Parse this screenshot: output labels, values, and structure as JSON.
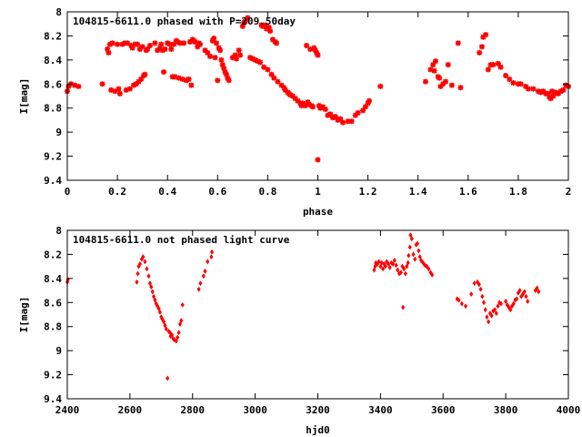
{
  "chart_data": [
    {
      "type": "scatter",
      "title": "104815-6611.0 phased with P=209.50day",
      "xlabel": "phase",
      "ylabel": "I[mag]",
      "xlim": [
        0,
        2
      ],
      "ylim": [
        9.4,
        8
      ],
      "y_inverted": true,
      "grid": false,
      "marker": "star",
      "color": "#ff0000",
      "xticks": [
        0,
        0.2,
        0.4,
        0.6,
        0.8,
        1,
        1.2,
        1.4,
        1.6,
        1.8,
        2
      ],
      "xtick_labels": [
        "0",
        "0.2",
        "0.4",
        "0.6",
        "0.8",
        "1",
        "1.2",
        "1.4",
        "1.6",
        "1.8",
        "2"
      ],
      "yticks": [
        8,
        8.2,
        8.4,
        8.6,
        8.8,
        9,
        9.2,
        9.4
      ],
      "ytick_labels": [
        "8",
        "8.2",
        "8.4",
        "8.6",
        "8.8",
        "9",
        "9.2",
        "9.4"
      ],
      "points": [
        [
          0.0,
          8.66
        ],
        [
          0.005,
          8.62
        ],
        [
          0.015,
          8.6
        ],
        [
          0.03,
          8.61
        ],
        [
          0.045,
          8.62
        ],
        [
          0.14,
          8.6
        ],
        [
          0.16,
          8.31
        ],
        [
          0.165,
          8.34
        ],
        [
          0.17,
          8.27
        ],
        [
          0.175,
          8.65
        ],
        [
          0.18,
          8.26
        ],
        [
          0.19,
          8.66
        ],
        [
          0.2,
          8.27
        ],
        [
          0.205,
          8.64
        ],
        [
          0.21,
          8.68
        ],
        [
          0.22,
          8.27
        ],
        [
          0.23,
          8.26
        ],
        [
          0.235,
          8.65
        ],
        [
          0.24,
          8.26
        ],
        [
          0.25,
          8.64
        ],
        [
          0.255,
          8.28
        ],
        [
          0.26,
          8.3
        ],
        [
          0.265,
          8.61
        ],
        [
          0.27,
          8.27
        ],
        [
          0.275,
          8.6
        ],
        [
          0.28,
          8.27
        ],
        [
          0.285,
          8.58
        ],
        [
          0.29,
          8.31
        ],
        [
          0.295,
          8.56
        ],
        [
          0.3,
          8.29
        ],
        [
          0.305,
          8.53
        ],
        [
          0.31,
          8.52
        ],
        [
          0.315,
          8.32
        ],
        [
          0.32,
          8.31
        ],
        [
          0.33,
          8.28
        ],
        [
          0.35,
          8.26
        ],
        [
          0.36,
          8.32
        ],
        [
          0.37,
          8.3
        ],
        [
          0.375,
          8.27
        ],
        [
          0.38,
          8.32
        ],
        [
          0.385,
          8.5
        ],
        [
          0.39,
          8.31
        ],
        [
          0.4,
          8.26
        ],
        [
          0.41,
          8.27
        ],
        [
          0.415,
          8.31
        ],
        [
          0.42,
          8.54
        ],
        [
          0.425,
          8.27
        ],
        [
          0.43,
          8.54
        ],
        [
          0.435,
          8.24
        ],
        [
          0.44,
          8.25
        ],
        [
          0.445,
          8.55
        ],
        [
          0.45,
          8.26
        ],
        [
          0.46,
          8.56
        ],
        [
          0.465,
          8.26
        ],
        [
          0.475,
          8.57
        ],
        [
          0.485,
          8.56
        ],
        [
          0.49,
          8.25
        ],
        [
          0.495,
          8.61
        ],
        [
          0.5,
          8.23
        ],
        [
          0.505,
          8.24
        ],
        [
          0.51,
          8.25
        ],
        [
          0.52,
          8.29
        ],
        [
          0.525,
          8.26
        ],
        [
          0.53,
          8.27
        ],
        [
          0.55,
          8.32
        ],
        [
          0.56,
          8.34
        ],
        [
          0.57,
          8.37
        ],
        [
          0.58,
          8.24
        ],
        [
          0.585,
          8.22
        ],
        [
          0.59,
          8.38
        ],
        [
          0.595,
          8.26
        ],
        [
          0.6,
          8.57
        ],
        [
          0.605,
          8.3
        ],
        [
          0.61,
          8.32
        ],
        [
          0.615,
          8.4
        ],
        [
          0.62,
          8.44
        ],
        [
          0.625,
          8.47
        ],
        [
          0.63,
          8.5
        ],
        [
          0.635,
          8.52
        ],
        [
          0.64,
          8.55
        ],
        [
          0.645,
          8.57
        ],
        [
          0.66,
          8.38
        ],
        [
          0.67,
          8.36
        ],
        [
          0.675,
          8.39
        ],
        [
          0.685,
          8.32
        ],
        [
          0.69,
          8.36
        ],
        [
          0.7,
          8.12
        ],
        [
          0.705,
          8.09
        ],
        [
          0.71,
          8.08
        ],
        [
          0.72,
          8.05
        ],
        [
          0.73,
          8.38
        ],
        [
          0.74,
          8.39
        ],
        [
          0.75,
          8.4
        ],
        [
          0.76,
          8.41
        ],
        [
          0.77,
          8.42
        ],
        [
          0.775,
          8.11
        ],
        [
          0.78,
          8.12
        ],
        [
          0.785,
          8.46
        ],
        [
          0.79,
          8.11
        ],
        [
          0.795,
          8.14
        ],
        [
          0.8,
          8.48
        ],
        [
          0.805,
          8.13
        ],
        [
          0.81,
          8.16
        ],
        [
          0.815,
          8.52
        ],
        [
          0.82,
          8.23
        ],
        [
          0.825,
          8.55
        ],
        [
          0.83,
          8.25
        ],
        [
          0.835,
          8.26
        ],
        [
          0.84,
          8.58
        ],
        [
          0.855,
          8.61
        ],
        [
          0.865,
          8.63
        ],
        [
          0.87,
          8.65
        ],
        [
          0.88,
          8.67
        ],
        [
          0.885,
          8.68
        ],
        [
          0.89,
          8.69
        ],
        [
          0.9,
          8.7
        ],
        [
          0.91,
          8.72
        ],
        [
          0.92,
          8.74
        ],
        [
          0.93,
          8.76
        ],
        [
          0.935,
          8.78
        ],
        [
          0.94,
          8.76
        ],
        [
          0.95,
          8.78
        ],
        [
          0.955,
          8.28
        ],
        [
          0.96,
          8.75
        ],
        [
          0.965,
          8.77
        ],
        [
          0.97,
          8.31
        ],
        [
          0.975,
          8.78
        ],
        [
          0.98,
          8.79
        ],
        [
          0.985,
          8.3
        ],
        [
          0.99,
          8.32
        ],
        [
          0.995,
          8.34
        ],
        [
          1.0,
          8.36
        ],
        [
          1.0,
          9.23
        ],
        [
          1.005,
          8.78
        ],
        [
          1.01,
          8.8
        ],
        [
          1.02,
          8.79
        ],
        [
          1.03,
          8.81
        ],
        [
          1.04,
          8.86
        ],
        [
          1.05,
          8.85
        ],
        [
          1.06,
          8.88
        ],
        [
          1.07,
          8.87
        ],
        [
          1.08,
          8.9
        ],
        [
          1.09,
          8.89
        ],
        [
          1.1,
          8.92
        ],
        [
          1.12,
          8.91
        ],
        [
          1.135,
          8.91
        ],
        [
          1.15,
          8.86
        ],
        [
          1.16,
          8.84
        ],
        [
          1.18,
          8.82
        ],
        [
          1.19,
          8.79
        ],
        [
          1.2,
          8.76
        ],
        [
          1.205,
          8.74
        ],
        [
          1.25,
          8.62
        ],
        [
          1.43,
          8.58
        ],
        [
          1.45,
          8.48
        ],
        [
          1.46,
          8.44
        ],
        [
          1.465,
          8.49
        ],
        [
          1.47,
          8.41
        ],
        [
          1.48,
          8.54
        ],
        [
          1.485,
          8.55
        ],
        [
          1.49,
          8.62
        ],
        [
          1.5,
          8.6
        ],
        [
          1.51,
          8.58
        ],
        [
          1.52,
          8.44
        ],
        [
          1.535,
          8.61
        ],
        [
          1.56,
          8.26
        ],
        [
          1.57,
          8.63
        ],
        [
          1.645,
          8.34
        ],
        [
          1.655,
          8.29
        ],
        [
          1.66,
          8.21
        ],
        [
          1.67,
          8.19
        ],
        [
          1.68,
          8.48
        ],
        [
          1.69,
          8.44
        ],
        [
          1.7,
          8.44
        ],
        [
          1.72,
          8.43
        ],
        [
          1.73,
          8.46
        ],
        [
          1.75,
          8.53
        ],
        [
          1.765,
          8.56
        ],
        [
          1.78,
          8.59
        ],
        [
          1.8,
          8.6
        ],
        [
          1.81,
          8.6
        ],
        [
          1.83,
          8.62
        ],
        [
          1.84,
          8.64
        ],
        [
          1.86,
          8.64
        ],
        [
          1.88,
          8.66
        ],
        [
          1.89,
          8.67
        ],
        [
          1.9,
          8.66
        ],
        [
          1.91,
          8.68
        ],
        [
          1.92,
          8.68
        ],
        [
          1.925,
          8.71
        ],
        [
          1.93,
          8.72
        ],
        [
          1.935,
          8.66
        ],
        [
          1.94,
          8.7
        ],
        [
          1.95,
          8.67
        ],
        [
          1.96,
          8.68
        ],
        [
          1.97,
          8.66
        ],
        [
          1.98,
          8.65
        ],
        [
          1.99,
          8.61
        ],
        [
          2.0,
          8.62
        ]
      ]
    },
    {
      "type": "scatter",
      "title": "104815-6611.0 not phased light curve",
      "xlabel": "hjd0",
      "ylabel": "I[mag]",
      "xlim": [
        2400,
        4000
      ],
      "ylim": [
        9.4,
        8
      ],
      "y_inverted": true,
      "grid": false,
      "marker": "diamond",
      "color": "#ff0000",
      "xticks": [
        2400,
        2600,
        2800,
        3000,
        3200,
        3400,
        3600,
        3800,
        4000
      ],
      "xtick_labels": [
        "2400",
        "2600",
        "2800",
        "3000",
        "3200",
        "3400",
        "3600",
        "3800",
        "4000"
      ],
      "yticks": [
        8,
        8.2,
        8.4,
        8.6,
        8.8,
        9,
        9.2,
        9.4
      ],
      "ytick_labels": [
        "8",
        "8.2",
        "8.4",
        "8.6",
        "8.8",
        "9",
        "9.2",
        "9.4"
      ],
      "points": [
        [
          2400,
          8.43
        ],
        [
          2402,
          8.41
        ],
        [
          2622,
          8.43
        ],
        [
          2625,
          8.36
        ],
        [
          2628,
          8.3
        ],
        [
          2632,
          8.28
        ],
        [
          2638,
          8.24
        ],
        [
          2642,
          8.22
        ],
        [
          2648,
          8.26
        ],
        [
          2654,
          8.32
        ],
        [
          2660,
          8.38
        ],
        [
          2664,
          8.44
        ],
        [
          2668,
          8.47
        ],
        [
          2672,
          8.51
        ],
        [
          2676,
          8.55
        ],
        [
          2680,
          8.58
        ],
        [
          2684,
          8.61
        ],
        [
          2688,
          8.63
        ],
        [
          2692,
          8.65
        ],
        [
          2696,
          8.68
        ],
        [
          2700,
          8.72
        ],
        [
          2704,
          8.74
        ],
        [
          2708,
          8.76
        ],
        [
          2712,
          8.79
        ],
        [
          2716,
          8.82
        ],
        [
          2720,
          9.23
        ],
        [
          2724,
          8.84
        ],
        [
          2728,
          8.85
        ],
        [
          2730,
          8.88
        ],
        [
          2734,
          8.87
        ],
        [
          2738,
          8.9
        ],
        [
          2742,
          8.91
        ],
        [
          2748,
          8.92
        ],
        [
          2752,
          8.89
        ],
        [
          2756,
          8.85
        ],
        [
          2760,
          8.78
        ],
        [
          2764,
          8.75
        ],
        [
          2768,
          8.62
        ],
        [
          2820,
          8.49
        ],
        [
          2825,
          8.44
        ],
        [
          2835,
          8.38
        ],
        [
          2840,
          8.34
        ],
        [
          2848,
          8.26
        ],
        [
          2860,
          8.22
        ],
        [
          2862,
          8.18
        ],
        [
          3380,
          8.33
        ],
        [
          3383,
          8.3
        ],
        [
          3385,
          8.27
        ],
        [
          3390,
          8.28
        ],
        [
          3395,
          8.26
        ],
        [
          3400,
          8.3
        ],
        [
          3404,
          8.27
        ],
        [
          3408,
          8.32
        ],
        [
          3412,
          8.28
        ],
        [
          3416,
          8.3
        ],
        [
          3420,
          8.26
        ],
        [
          3425,
          8.28
        ],
        [
          3430,
          8.31
        ],
        [
          3435,
          8.27
        ],
        [
          3440,
          8.28
        ],
        [
          3445,
          8.25
        ],
        [
          3450,
          8.29
        ],
        [
          3455,
          8.33
        ],
        [
          3460,
          8.36
        ],
        [
          3465,
          8.35
        ],
        [
          3470,
          8.3
        ],
        [
          3472,
          8.64
        ],
        [
          3475,
          8.32
        ],
        [
          3480,
          8.36
        ],
        [
          3484,
          8.3
        ],
        [
          3488,
          8.27
        ],
        [
          3490,
          8.21
        ],
        [
          3494,
          8.14
        ],
        [
          3496,
          8.04
        ],
        [
          3500,
          8.07
        ],
        [
          3505,
          8.2
        ],
        [
          3510,
          8.24
        ],
        [
          3514,
          8.12
        ],
        [
          3518,
          8.11
        ],
        [
          3522,
          8.17
        ],
        [
          3526,
          8.22
        ],
        [
          3530,
          8.25
        ],
        [
          3536,
          8.27
        ],
        [
          3542,
          8.29
        ],
        [
          3548,
          8.3
        ],
        [
          3554,
          8.32
        ],
        [
          3560,
          8.35
        ],
        [
          3565,
          8.37
        ],
        [
          3645,
          8.57
        ],
        [
          3650,
          8.58
        ],
        [
          3660,
          8.61
        ],
        [
          3672,
          8.63
        ],
        [
          3690,
          8.53
        ],
        [
          3700,
          8.44
        ],
        [
          3710,
          8.43
        ],
        [
          3715,
          8.45
        ],
        [
          3720,
          8.49
        ],
        [
          3725,
          8.55
        ],
        [
          3730,
          8.6
        ],
        [
          3735,
          8.66
        ],
        [
          3740,
          8.72
        ],
        [
          3745,
          8.76
        ],
        [
          3750,
          8.69
        ],
        [
          3755,
          8.71
        ],
        [
          3760,
          8.67
        ],
        [
          3765,
          8.66
        ],
        [
          3770,
          8.69
        ],
        [
          3775,
          8.63
        ],
        [
          3780,
          8.6
        ],
        [
          3785,
          8.61
        ],
        [
          3800,
          8.59
        ],
        [
          3805,
          8.62
        ],
        [
          3810,
          8.64
        ],
        [
          3815,
          8.66
        ],
        [
          3820,
          8.63
        ],
        [
          3825,
          8.61
        ],
        [
          3830,
          8.58
        ],
        [
          3835,
          8.57
        ],
        [
          3840,
          8.52
        ],
        [
          3845,
          8.5
        ],
        [
          3850,
          8.55
        ],
        [
          3855,
          8.53
        ],
        [
          3860,
          8.51
        ],
        [
          3865,
          8.55
        ],
        [
          3870,
          8.59
        ],
        [
          3895,
          8.5
        ],
        [
          3900,
          8.48
        ],
        [
          3905,
          8.51
        ]
      ]
    }
  ]
}
